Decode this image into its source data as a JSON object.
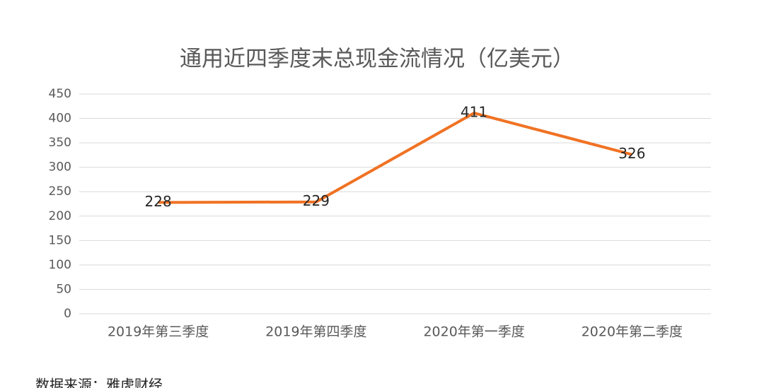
{
  "chart_data": {
    "type": "line",
    "title": "通用近四季度末总现金流情况（亿美元）",
    "categories": [
      "2019年第三季度",
      "2019年第四季度",
      "2020年第一季度",
      "2020年第二季度"
    ],
    "series": [
      {
        "name": "总现金流",
        "color": "#f07223",
        "values": [
          228,
          229,
          411,
          326
        ]
      }
    ],
    "ylim": [
      0,
      450
    ],
    "yticks": [
      0,
      50,
      100,
      150,
      200,
      250,
      300,
      350,
      400,
      450
    ],
    "grid": true,
    "source": "数据来源：雅虎财经"
  }
}
